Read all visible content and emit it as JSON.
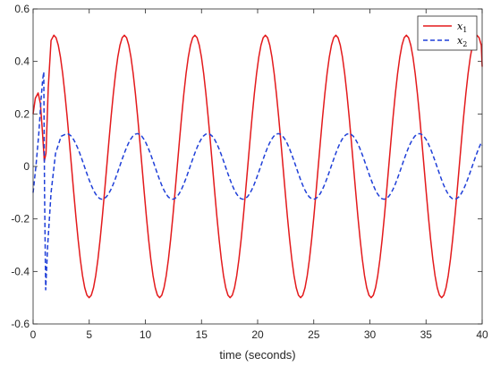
{
  "chart_data": {
    "type": "line",
    "title": "",
    "xlabel": "time (seconds)",
    "ylabel": "",
    "xlim": [
      0,
      40
    ],
    "ylim": [
      -0.6,
      0.6
    ],
    "xticks": [
      "0",
      "5",
      "10",
      "15",
      "20",
      "25",
      "30",
      "35",
      "40"
    ],
    "yticks": [
      "-0.6",
      "-0.4",
      "-0.2",
      "0",
      "0.2",
      "0.4",
      "0.6"
    ],
    "grid": false,
    "legend_position": "top-right",
    "period": 6.28,
    "series": [
      {
        "name": "x",
        "name_subscript": "1",
        "color": "#e31a1c",
        "style": "solid",
        "amplitude": 0.5,
        "transient": [
          [
            0,
            0.2
          ],
          [
            0.2,
            0.26
          ],
          [
            0.45,
            0.28
          ],
          [
            0.65,
            0.24
          ],
          [
            0.85,
            0.12
          ],
          [
            1.0,
            0.02
          ],
          [
            1.15,
            0.05
          ],
          [
            1.35,
            0.3
          ],
          [
            1.6,
            0.48
          ],
          [
            1.85,
            0.5
          ]
        ],
        "x": [
          1.85,
          4.99,
          8.13,
          11.27,
          14.41,
          17.55,
          20.69,
          23.83,
          26.97,
          30.11,
          33.25,
          36.39,
          39.53
        ],
        "y": [
          0.5,
          -0.5,
          0.5,
          -0.5,
          0.5,
          -0.5,
          0.5,
          -0.5,
          0.5,
          -0.5,
          0.5,
          -0.5,
          0.5
        ],
        "end": [
          40,
          0.38
        ]
      },
      {
        "name": "x",
        "name_subscript": "2",
        "color": "#1f3fd8",
        "style": "dashed",
        "amplitude": 0.125,
        "transient": [
          [
            0,
            -0.1
          ],
          [
            0.25,
            0.0
          ],
          [
            0.5,
            0.12
          ],
          [
            0.7,
            0.25
          ],
          [
            0.85,
            0.33
          ],
          [
            0.95,
            0.36
          ],
          [
            1.02,
            -0.1
          ],
          [
            1.12,
            -0.47
          ],
          [
            1.3,
            -0.3
          ],
          [
            1.6,
            -0.1
          ],
          [
            2.0,
            0.05
          ],
          [
            2.5,
            0.115
          ],
          [
            3.0,
            0.125
          ]
        ],
        "x": [
          3.0,
          6.14,
          9.28,
          12.42,
          15.56,
          18.7,
          21.84,
          24.98,
          28.12,
          31.26,
          34.4,
          37.54
        ],
        "y": [
          0.125,
          -0.125,
          0.125,
          -0.125,
          0.125,
          -0.125,
          0.125,
          -0.125,
          0.125,
          -0.125,
          0.125,
          -0.125
        ],
        "end": [
          40,
          0.08
        ]
      }
    ]
  }
}
